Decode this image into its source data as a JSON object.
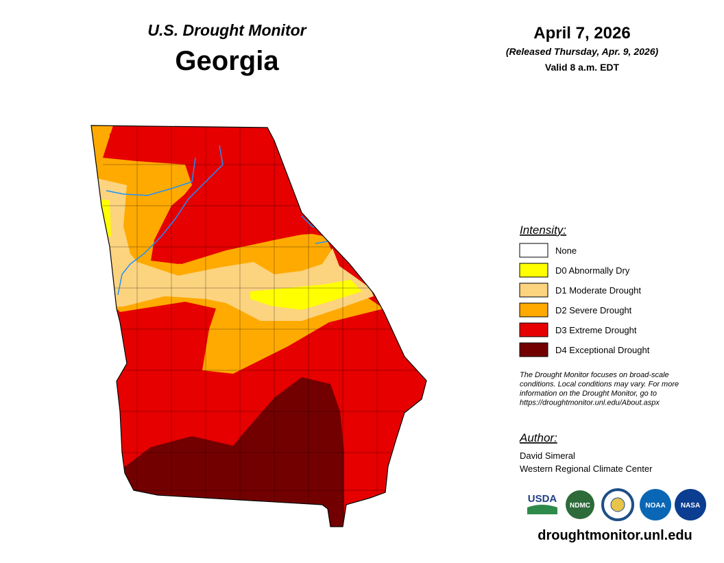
{
  "header": {
    "title": "U.S. Drought Monitor",
    "state": "Georgia"
  },
  "date": {
    "map_date": "April 7, 2026",
    "released": "(Released Thursday, Apr. 9, 2026)",
    "valid": "Valid 8 a.m. EDT"
  },
  "legend": {
    "title": "Intensity:",
    "items": [
      {
        "label": "None",
        "color": "#ffffff"
      },
      {
        "label": "D0 Abnormally Dry",
        "color": "#ffff00"
      },
      {
        "label": "D1 Moderate Drought",
        "color": "#fcd37f"
      },
      {
        "label": "D2 Severe Drought",
        "color": "#ffaa00"
      },
      {
        "label": "D3 Extreme Drought",
        "color": "#e60000"
      },
      {
        "label": "D4 Exceptional Drought",
        "color": "#730000"
      }
    ]
  },
  "note": [
    "The Drought Monitor focuses on broad-scale",
    "conditions. Local conditions may vary. For more",
    "information on the Drought Monitor, go to",
    "https://droughtmonitor.unl.edu/About.aspx"
  ],
  "author": {
    "title": "Author:",
    "lines": [
      "David Simeral",
      "Western Regional Climate Center"
    ]
  },
  "logos": [
    "USDA",
    "NDMC",
    "NOAA",
    "NASA"
  ],
  "footer": {
    "url": "droughtmonitor.unl.edu"
  }
}
